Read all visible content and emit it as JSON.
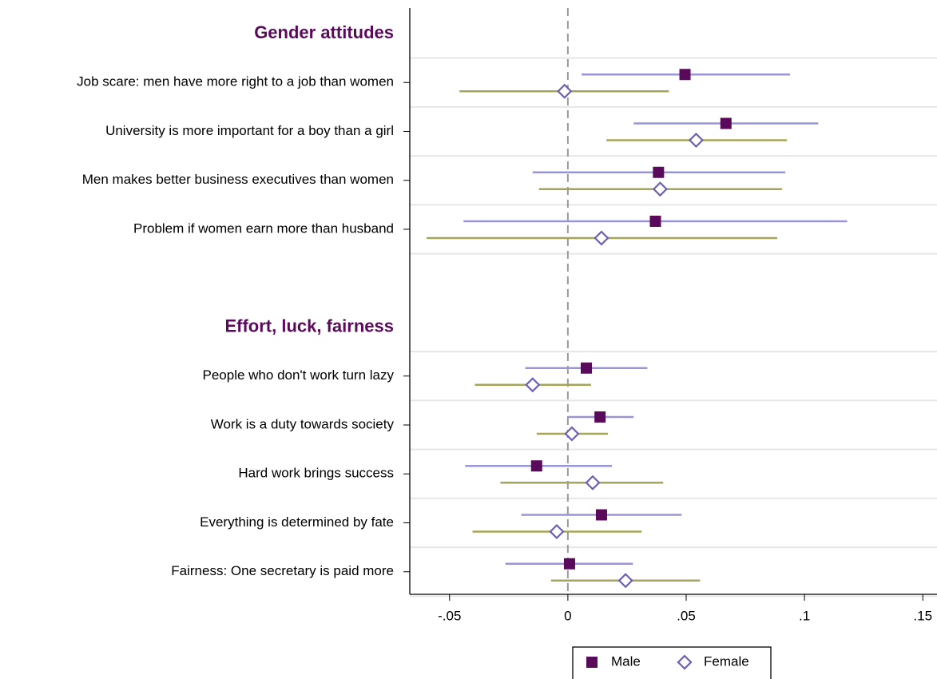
{
  "chart_data": {
    "type": "coefplot",
    "groups": [
      {
        "title": "Gender attitudes",
        "categories": [
          "Job scare: men have more right to a job than women",
          "University is more important for a boy than a girl",
          "Men makes better business executives than women",
          "Problem if women earn more than husband"
        ]
      },
      {
        "title": "Effort, luck, fairness",
        "categories": [
          "People who don't work turn lazy",
          "Work is a duty towards society",
          "Hard work brings success",
          "Everything is determined by fate",
          "Fairness: One secretary is paid more"
        ]
      }
    ],
    "series": [
      {
        "name": "Male",
        "color": "#5a0a5a",
        "ci_color": "#9a94d8",
        "marker": "square",
        "values": [
          0.0495,
          0.0668,
          0.0383,
          0.037,
          0.0078,
          0.0136,
          -0.0132,
          0.0142,
          0.0007
        ],
        "lower": [
          0.0058,
          0.0278,
          -0.0149,
          -0.0441,
          -0.018,
          -0.0003,
          -0.0434,
          -0.0197,
          -0.0264
        ],
        "upper": [
          0.0939,
          0.1058,
          0.0919,
          0.118,
          0.0336,
          0.0278,
          0.0186,
          0.0481,
          0.0275
        ]
      },
      {
        "name": "Female",
        "color": "#6a5fb5",
        "ci_color": "#a5a55a",
        "marker": "diamond",
        "values": [
          -0.0014,
          0.0542,
          0.039,
          0.0142,
          -0.0149,
          0.0017,
          0.0105,
          -0.0047,
          0.0244
        ],
        "lower": [
          -0.0458,
          0.0163,
          -0.0122,
          -0.0597,
          -0.0393,
          -0.0132,
          -0.0285,
          -0.0403,
          -0.0071
        ],
        "upper": [
          0.0427,
          0.0925,
          0.0905,
          0.0885,
          0.0098,
          0.0169,
          0.0403,
          0.0312,
          0.0559
        ]
      }
    ],
    "xlim": [
      -0.0668,
      0.156
    ],
    "xticks": [
      {
        "value": -0.05,
        "label": "-.05"
      },
      0,
      {
        "value": 0.05,
        "label": ".05"
      },
      {
        "value": 0.1,
        "label": ".1"
      },
      {
        "value": 0.15,
        "label": ".15"
      }
    ],
    "reference_line": 0,
    "grid": true,
    "legend": "bottom"
  }
}
